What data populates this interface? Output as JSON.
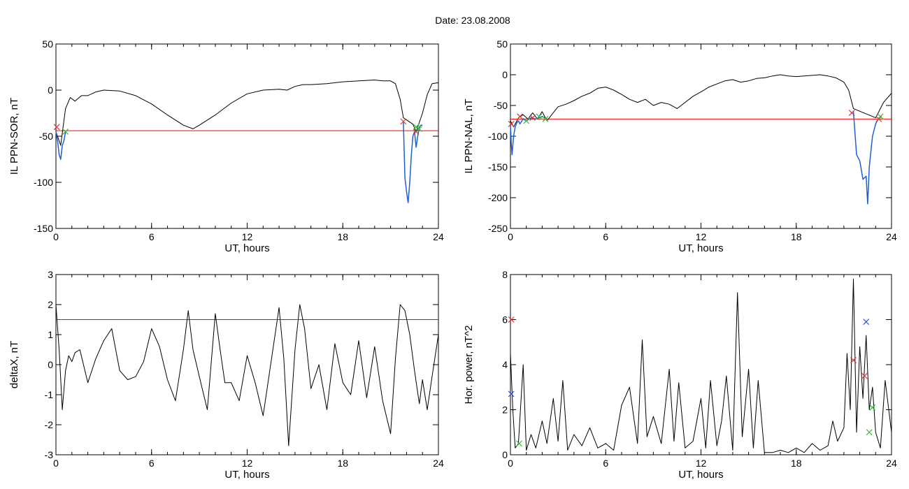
{
  "page": {
    "title": "Date:  23.08.2008"
  },
  "colors": {
    "background": "#ffffff",
    "axis": "#000000",
    "signal": "#000000",
    "threshold": "#ff0000",
    "event_segment": "#1f5fd6",
    "marker_red": "#e03030",
    "marker_green": "#2ebd2e",
    "marker_blue": "#3050e0"
  },
  "chart_data": [
    {
      "type": "line",
      "xlabel": "UT, hours",
      "ylabel": "IL PPN-SOR, nT",
      "xlim": [
        0,
        24
      ],
      "ylim": [
        -150,
        50
      ],
      "xticks": [
        0,
        6,
        12,
        18,
        24
      ],
      "yticks": [
        -150,
        -100,
        -50,
        0,
        50
      ],
      "threshold": -44,
      "series": [
        {
          "style": "signal",
          "x": [
            0,
            0.3,
            0.6,
            0.9,
            1.2,
            1.6,
            2.0,
            2.5,
            3.0,
            4.0,
            5.0,
            6.0,
            7.0,
            8.0,
            8.6,
            9.0,
            10.0,
            11.0,
            12.0,
            13.0,
            14.0,
            14.5,
            15.0,
            15.5,
            16.0,
            17.0,
            18.0,
            19.0,
            20.0,
            20.5,
            21.0,
            21.3,
            21.6,
            21.8,
            22.4,
            22.6,
            23.0,
            23.3,
            23.6,
            24.0
          ],
          "y": [
            -45,
            -60,
            -20,
            -8,
            -12,
            -6,
            -6,
            -2,
            0,
            -1,
            -6,
            -15,
            -27,
            -38,
            -42,
            -38,
            -27,
            -14,
            -4,
            0,
            1,
            0,
            4,
            6,
            6,
            7,
            9,
            10,
            11,
            10,
            10,
            7,
            -10,
            -30,
            -37,
            -45,
            -25,
            -5,
            7,
            8
          ]
        },
        {
          "style": "event_segment",
          "x": [
            0,
            0.1,
            0.2,
            0.3,
            0.4,
            0.5,
            0.6
          ],
          "y": [
            -45,
            -55,
            -70,
            -75,
            -60,
            -55,
            -45
          ]
        },
        {
          "style": "event_segment",
          "x": [
            21.8,
            21.9,
            22.0,
            22.1,
            22.2,
            22.3,
            22.4,
            22.5,
            22.6,
            22.7,
            22.8,
            22.9,
            23.0
          ],
          "y": [
            -35,
            -95,
            -110,
            -122,
            -100,
            -70,
            -50,
            -45,
            -62,
            -50,
            -40,
            -38,
            -38
          ]
        }
      ],
      "markers": [
        {
          "x": 0.05,
          "y": -40,
          "color": "marker_red"
        },
        {
          "x": 0.6,
          "y": -45,
          "color": "marker_green"
        },
        {
          "x": 21.8,
          "y": -34,
          "color": "marker_red"
        },
        {
          "x": 22.6,
          "y": -45,
          "color": "marker_red"
        },
        {
          "x": 22.6,
          "y": -40,
          "color": "marker_green"
        },
        {
          "x": 22.8,
          "y": -42,
          "color": "marker_green"
        }
      ]
    },
    {
      "type": "line",
      "xlabel": "UT, hours",
      "ylabel": "IL PPN-NAL, nT",
      "xlim": [
        0,
        24
      ],
      "ylim": [
        -250,
        50
      ],
      "xticks": [
        0,
        6,
        12,
        18,
        24
      ],
      "yticks": [
        -250,
        -200,
        -150,
        -100,
        -50,
        0,
        50
      ],
      "threshold": -72,
      "series": [
        {
          "style": "signal",
          "x": [
            0,
            0.2,
            0.5,
            0.8,
            1.1,
            1.4,
            1.7,
            2.0,
            2.3,
            2.6,
            3.0,
            3.5,
            4.0,
            4.5,
            5.0,
            5.5,
            6.0,
            6.5,
            7.0,
            7.5,
            8.0,
            8.5,
            9.0,
            9.5,
            10.0,
            10.5,
            11.0,
            11.5,
            12.0,
            12.5,
            13.0,
            13.5,
            14.0,
            14.5,
            15.0,
            15.5,
            16.0,
            16.5,
            17.0,
            17.5,
            18.0,
            18.5,
            19.0,
            19.5,
            20.0,
            20.5,
            21.0,
            21.3,
            21.6,
            23.0,
            23.5,
            24.0
          ],
          "y": [
            -75,
            -85,
            -70,
            -65,
            -72,
            -62,
            -72,
            -60,
            -75,
            -65,
            -52,
            -48,
            -42,
            -35,
            -30,
            -22,
            -20,
            -25,
            -32,
            -40,
            -45,
            -40,
            -50,
            -45,
            -48,
            -55,
            -45,
            -35,
            -28,
            -20,
            -15,
            -10,
            -8,
            -12,
            -10,
            -6,
            -5,
            -2,
            0,
            -2,
            -3,
            -2,
            -1,
            0,
            -2,
            -5,
            -12,
            -25,
            -55,
            -70,
            -45,
            -30
          ]
        },
        {
          "style": "event_segment",
          "x": [
            0,
            0.05,
            0.1,
            0.2,
            0.3,
            0.4,
            0.5,
            0.6,
            0.8,
            1.0,
            1.3,
            1.6,
            2.0,
            2.3
          ],
          "y": [
            -80,
            -110,
            -130,
            -100,
            -85,
            -78,
            -75,
            -80,
            -72,
            -75,
            -70,
            -72,
            -68,
            -72
          ]
        },
        {
          "style": "event_segment",
          "x": [
            21.6,
            21.8,
            22.0,
            22.2,
            22.4,
            22.5,
            22.6,
            22.8,
            23.0,
            23.2
          ],
          "y": [
            -60,
            -130,
            -140,
            -170,
            -165,
            -210,
            -150,
            -100,
            -80,
            -70
          ]
        }
      ],
      "markers": [
        {
          "x": 0.05,
          "y": -80,
          "color": "marker_red"
        },
        {
          "x": 0.6,
          "y": -68,
          "color": "marker_red"
        },
        {
          "x": 1.0,
          "y": -75,
          "color": "marker_green"
        },
        {
          "x": 1.4,
          "y": -70,
          "color": "marker_red"
        },
        {
          "x": 1.8,
          "y": -68,
          "color": "marker_green"
        },
        {
          "x": 2.2,
          "y": -72,
          "color": "marker_green"
        },
        {
          "x": 21.5,
          "y": -62,
          "color": "marker_red"
        },
        {
          "x": 23.2,
          "y": -72,
          "color": "marker_red"
        },
        {
          "x": 23.3,
          "y": -68,
          "color": "marker_green"
        }
      ]
    },
    {
      "type": "line",
      "xlabel": "UT, hours",
      "ylabel": "deltaX, nT",
      "xlim": [
        0,
        24
      ],
      "ylim": [
        -3,
        3
      ],
      "xticks": [
        0,
        6,
        12,
        18,
        24
      ],
      "yticks": [
        -3,
        -2,
        -1,
        0,
        1,
        2,
        3
      ],
      "threshold": 1.5,
      "series": [
        {
          "style": "signal",
          "x": [
            0,
            0.2,
            0.4,
            0.6,
            0.8,
            1.0,
            1.2,
            1.5,
            2.0,
            2.5,
            3.0,
            3.5,
            4.0,
            4.5,
            5.0,
            5.5,
            6.0,
            6.5,
            7.0,
            7.5,
            8.0,
            8.3,
            8.6,
            9.0,
            9.5,
            10.0,
            10.3,
            10.6,
            11.0,
            11.5,
            12.0,
            12.5,
            13.0,
            13.5,
            14.0,
            14.3,
            14.6,
            15.0,
            15.3,
            15.6,
            16.0,
            16.5,
            17.0,
            17.5,
            18.0,
            18.5,
            19.0,
            19.5,
            20.0,
            20.5,
            21.0,
            21.3,
            21.6,
            21.9,
            22.2,
            22.5,
            22.8,
            23.0,
            23.3,
            23.6,
            24.0
          ],
          "y": [
            2.0,
            0.5,
            -1.5,
            -0.2,
            0.3,
            0.1,
            0.4,
            0.5,
            -0.6,
            0.2,
            0.8,
            1.2,
            -0.2,
            -0.5,
            -0.4,
            0.1,
            1.2,
            0.6,
            -0.5,
            -1.2,
            0.5,
            1.8,
            0.5,
            -0.4,
            -1.5,
            1.7,
            0.5,
            -0.6,
            -0.6,
            -1.2,
            0.3,
            -0.6,
            -1.7,
            0.1,
            1.9,
            0.2,
            -2.7,
            0.5,
            2.0,
            1.2,
            -0.8,
            0.0,
            -1.5,
            0.7,
            -0.6,
            -1.0,
            0.8,
            -1.1,
            0.6,
            -1.2,
            -2.3,
            0.2,
            2.0,
            1.8,
            1.0,
            -0.2,
            -1.3,
            -0.5,
            -1.5,
            -0.4,
            1.0
          ]
        }
      ],
      "markers": []
    },
    {
      "type": "line",
      "xlabel": "UT, hours",
      "ylabel": "Hor. power, nT^2",
      "xlim": [
        0,
        24
      ],
      "ylim": [
        0,
        8
      ],
      "xticks": [
        0,
        6,
        12,
        18,
        24
      ],
      "yticks": [
        0,
        2,
        4,
        6,
        8
      ],
      "series": [
        {
          "style": "signal",
          "x": [
            0,
            0.15,
            0.3,
            0.5,
            0.8,
            1.0,
            1.3,
            1.6,
            2.0,
            2.3,
            2.7,
            3.0,
            3.3,
            3.6,
            4.0,
            4.5,
            5.0,
            5.5,
            6.0,
            6.5,
            7.0,
            7.5,
            8.0,
            8.3,
            8.6,
            9.0,
            9.5,
            10.0,
            10.3,
            10.6,
            11.0,
            11.5,
            12.0,
            12.3,
            12.6,
            13.0,
            13.3,
            13.6,
            14.0,
            14.3,
            14.6,
            15.0,
            15.3,
            15.6,
            16.0,
            16.5,
            17.0,
            17.5,
            18.0,
            18.5,
            19.0,
            19.5,
            20.0,
            20.3,
            20.6,
            21.0,
            21.2,
            21.4,
            21.6,
            21.8,
            22.0,
            22.2,
            22.4,
            22.6,
            22.8,
            23.0,
            23.3,
            23.6,
            24.0
          ],
          "y": [
            4.5,
            2.0,
            0.3,
            0.5,
            4.0,
            0.2,
            0.9,
            0.3,
            1.5,
            0.5,
            2.5,
            0.6,
            3.3,
            0.2,
            0.9,
            0.4,
            1.2,
            0.3,
            0.5,
            0.2,
            2.2,
            3.0,
            0.5,
            5.1,
            0.8,
            1.7,
            0.5,
            3.8,
            0.6,
            3.2,
            0.3,
            0.6,
            2.5,
            0.3,
            3.3,
            0.4,
            1.5,
            3.5,
            0.2,
            7.2,
            0.8,
            3.8,
            0.3,
            3.3,
            0.1,
            0.1,
            0.2,
            0.1,
            0.3,
            0.1,
            0.5,
            0.2,
            0.4,
            1.5,
            0.6,
            1.2,
            4.5,
            2.0,
            7.8,
            1.0,
            4.8,
            2.5,
            5.3,
            2.0,
            3.0,
            1.0,
            0.3,
            3.3,
            1.0
          ]
        }
      ],
      "markers": [
        {
          "x": 0.05,
          "y": 6.0,
          "color": "marker_red"
        },
        {
          "x": 0.05,
          "y": 2.7,
          "color": "marker_blue"
        },
        {
          "x": 0.55,
          "y": 0.5,
          "color": "marker_green"
        },
        {
          "x": 21.6,
          "y": 4.2,
          "color": "marker_red"
        },
        {
          "x": 22.3,
          "y": 3.5,
          "color": "marker_red"
        },
        {
          "x": 22.4,
          "y": 5.9,
          "color": "marker_blue"
        },
        {
          "x": 22.6,
          "y": 1.0,
          "color": "marker_green"
        },
        {
          "x": 22.8,
          "y": 2.1,
          "color": "marker_green"
        }
      ]
    }
  ]
}
